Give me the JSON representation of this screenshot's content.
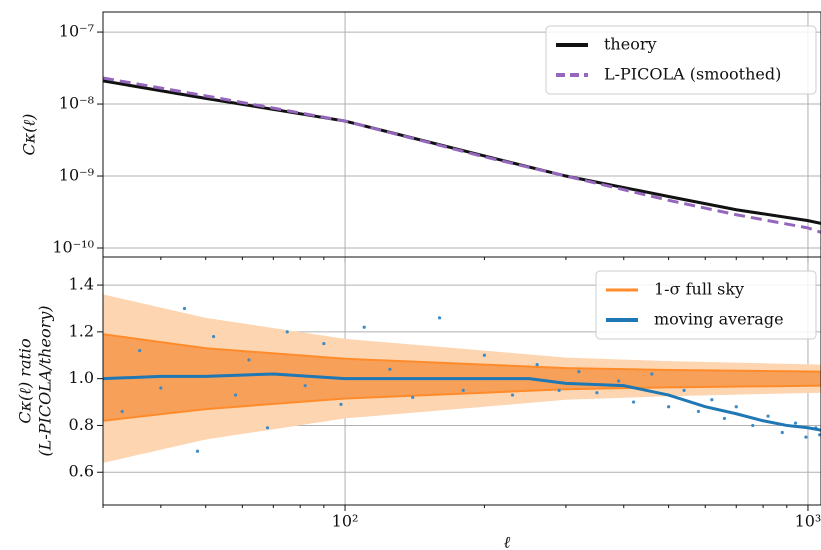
{
  "chart_data": [
    {
      "type": "line",
      "ylabel": "Cκ(ℓ)",
      "log_x": true,
      "log_y": true,
      "grid": true,
      "legend": "upper right",
      "xlim": [
        30,
        1067
      ],
      "ylim": [
        7.5e-11,
        1.9e-07
      ],
      "xticks": [
        {
          "value": 100,
          "label": "10²"
        },
        {
          "value": 1000,
          "label": "10³"
        }
      ],
      "xminorticks": [
        30,
        40,
        50,
        60,
        70,
        80,
        90,
        200,
        300,
        400,
        500,
        600,
        700,
        800,
        900
      ],
      "yticks": [
        {
          "value": 1e-10,
          "label": "10⁻¹⁰"
        },
        {
          "value": 1e-09,
          "label": "10⁻⁹"
        },
        {
          "value": 1e-08,
          "label": "10⁻⁸"
        },
        {
          "value": 1e-07,
          "label": "10⁻⁷"
        }
      ],
      "x": [
        30,
        50,
        100,
        200,
        300,
        500,
        700,
        1000,
        1067
      ],
      "series": [
        {
          "name": "theory",
          "color": "#111111",
          "dashed": false,
          "values": [
            2.1e-08,
            1.2e-08,
            5.8e-09,
            1.9e-09,
            1e-09,
            5.2e-10,
            3.4e-10,
            2.4e-10,
            2.2e-10
          ]
        },
        {
          "name": "L-PICOLA (smoothed)",
          "color": "#9467bd",
          "dashed": true,
          "values": [
            2.3e-08,
            1.3e-08,
            5.8e-09,
            1.85e-09,
            1e-09,
            4.6e-10,
            2.9e-10,
            1.9e-10,
            1.65e-10
          ]
        }
      ]
    },
    {
      "type": "line",
      "ylabel": [
        "Cκ(ℓ) ratio",
        "(L-PICOLA/theory)"
      ],
      "xlabel": "ℓ",
      "log_x": true,
      "grid": true,
      "legend": "upper right",
      "xlim": [
        30,
        1067
      ],
      "ylim": [
        0.46,
        1.52
      ],
      "xticks": [
        {
          "value": 100,
          "label": "10²"
        },
        {
          "value": 1000,
          "label": "10³"
        }
      ],
      "xminorticks": [
        30,
        40,
        50,
        60,
        70,
        80,
        90,
        200,
        300,
        400,
        500,
        600,
        700,
        800,
        900
      ],
      "yticks": [
        0.6,
        0.8,
        {
          "value": 1,
          "label": "1.0"
        },
        1.2,
        1.4
      ],
      "outer_band": {
        "color": "#fdd5b0",
        "x": [
          30,
          50,
          100,
          200,
          300,
          500,
          1067
        ],
        "lower": [
          0.64,
          0.74,
          0.83,
          0.88,
          0.91,
          0.925,
          0.94
        ],
        "upper": [
          1.36,
          1.26,
          1.17,
          1.12,
          1.09,
          1.075,
          1.06
        ]
      },
      "band": {
        "name": "1-σ full sky",
        "color": "#f7a05a",
        "edge": "#ff8b2b",
        "x": [
          30,
          50,
          100,
          200,
          300,
          500,
          1067
        ],
        "lower": [
          0.82,
          0.87,
          0.915,
          0.94,
          0.955,
          0.963,
          0.97
        ],
        "upper": [
          1.19,
          1.13,
          1.085,
          1.06,
          1.045,
          1.037,
          1.03
        ]
      },
      "scatter": {
        "color": "#3b8bc9",
        "x": [
          33,
          36,
          40,
          45,
          48,
          52,
          58,
          62,
          68,
          75,
          82,
          90,
          98,
          110,
          125,
          140,
          160,
          180,
          200,
          230,
          260,
          290,
          320,
          350,
          390,
          420,
          460,
          500,
          540,
          580,
          620,
          660,
          700,
          760,
          820,
          880,
          940,
          990,
          1040,
          1060
        ],
        "y": [
          0.86,
          1.12,
          0.96,
          1.3,
          0.69,
          1.18,
          0.93,
          1.08,
          0.79,
          1.2,
          0.97,
          1.15,
          0.89,
          1.22,
          1.04,
          0.92,
          1.26,
          0.95,
          1.1,
          0.93,
          1.06,
          0.95,
          1.03,
          0.94,
          0.99,
          0.9,
          1.02,
          0.88,
          0.95,
          0.86,
          0.91,
          0.83,
          0.88,
          0.8,
          0.84,
          0.77,
          0.81,
          0.75,
          0.79,
          0.76
        ]
      },
      "x": [
        30,
        40,
        50,
        70,
        100,
        150,
        200,
        250,
        300,
        400,
        500,
        600,
        700,
        800,
        900,
        1000,
        1067
      ],
      "series": [
        {
          "name": "moving average",
          "color": "#1f77b4",
          "dashed": false,
          "values": [
            1.0,
            1.01,
            1.01,
            1.02,
            1.0,
            1.0,
            1.0,
            1.0,
            0.98,
            0.97,
            0.93,
            0.88,
            0.85,
            0.82,
            0.8,
            0.79,
            0.78
          ]
        }
      ]
    }
  ]
}
